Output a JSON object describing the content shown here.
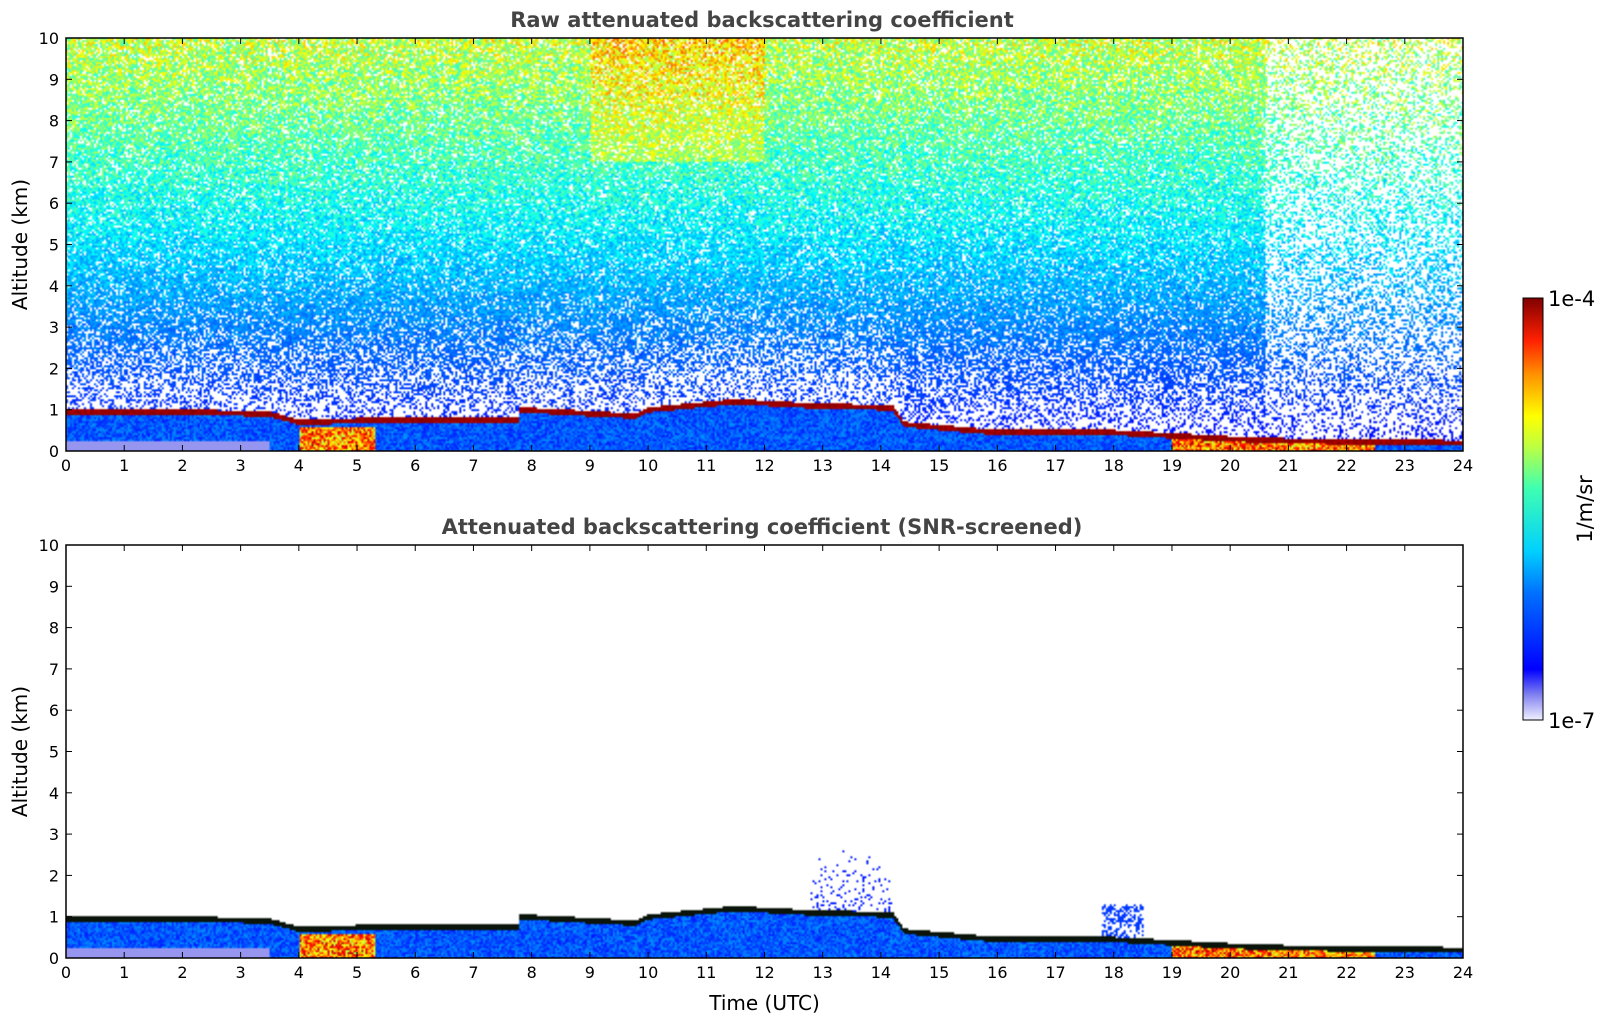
{
  "chart_data": [
    {
      "type": "heatmap",
      "title": "Raw attenuated backscattering coefficient",
      "xlabel": "",
      "ylabel": "Altitude (km)",
      "xlim": [
        0,
        24
      ],
      "ylim": [
        0,
        10
      ],
      "xticks": [
        "0",
        "1",
        "2",
        "3",
        "4",
        "5",
        "6",
        "7",
        "8",
        "9",
        "10",
        "11",
        "12",
        "13",
        "14",
        "15",
        "16",
        "17",
        "18",
        "19",
        "20",
        "21",
        "22",
        "23",
        "24"
      ],
      "yticks": [
        "0",
        "1",
        "2",
        "3",
        "4",
        "5",
        "6",
        "7",
        "8",
        "9",
        "10"
      ],
      "colorscale": "jet",
      "screened": false,
      "boundary_layer_top_km": [
        [
          0,
          0.95
        ],
        [
          2.0,
          0.95
        ],
        [
          3.5,
          0.9
        ],
        [
          4.0,
          0.7
        ],
        [
          5.3,
          0.75
        ],
        [
          7.8,
          0.75
        ],
        [
          7.8,
          1.0
        ],
        [
          9.8,
          0.85
        ],
        [
          10.0,
          1.0
        ],
        [
          11.5,
          1.2
        ],
        [
          12.8,
          1.1
        ],
        [
          14.2,
          1.05
        ],
        [
          14.4,
          0.65
        ],
        [
          16.0,
          0.45
        ],
        [
          18.0,
          0.45
        ],
        [
          20.0,
          0.3
        ],
        [
          21.0,
          0.25
        ],
        [
          24.0,
          0.2
        ]
      ]
    },
    {
      "type": "heatmap",
      "title": "Attenuated backscattering coefficient (SNR-screened)",
      "xlabel": "Time (UTC)",
      "ylabel": "Altitude (km)",
      "xlim": [
        0,
        24
      ],
      "ylim": [
        0,
        10
      ],
      "xticks": [
        "0",
        "1",
        "2",
        "3",
        "4",
        "5",
        "6",
        "7",
        "8",
        "9",
        "10",
        "11",
        "12",
        "13",
        "14",
        "15",
        "16",
        "17",
        "18",
        "19",
        "20",
        "21",
        "22",
        "23",
        "24"
      ],
      "yticks": [
        "0",
        "1",
        "2",
        "3",
        "4",
        "5",
        "6",
        "7",
        "8",
        "9",
        "10"
      ],
      "colorscale": "jet",
      "screened": true,
      "boundary_layer_top_km": [
        [
          0,
          0.95
        ],
        [
          2.0,
          0.95
        ],
        [
          3.5,
          0.9
        ],
        [
          4.0,
          0.7
        ],
        [
          5.3,
          0.75
        ],
        [
          7.8,
          0.75
        ],
        [
          7.8,
          1.0
        ],
        [
          9.8,
          0.85
        ],
        [
          10.0,
          1.0
        ],
        [
          11.5,
          1.2
        ],
        [
          12.8,
          1.1
        ],
        [
          14.2,
          1.05
        ],
        [
          14.4,
          0.65
        ],
        [
          16.0,
          0.45
        ],
        [
          18.0,
          0.45
        ],
        [
          20.0,
          0.3
        ],
        [
          21.0,
          0.25
        ],
        [
          24.0,
          0.2
        ]
      ]
    }
  ],
  "colorbar": {
    "label": "1/m/sr",
    "max_label": "1e-4",
    "min_label": "1e-7",
    "range": [
      1e-07,
      0.0001
    ],
    "scale": "log",
    "colorscale": "jet"
  }
}
